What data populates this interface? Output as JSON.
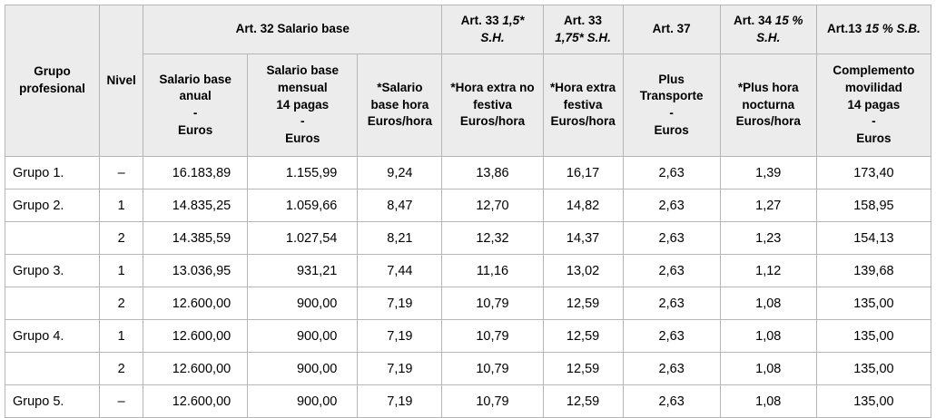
{
  "table": {
    "styles": {
      "header_bg": "#ececec",
      "border_color": "#b6b6b6",
      "text_color": "#000000",
      "page_bg": "#ffffff"
    },
    "header_row1": {
      "grupo": {
        "lines": [
          [
            {
              "t": "Grupo"
            }
          ],
          [
            {
              "t": "profesional"
            }
          ]
        ]
      },
      "nivel": {
        "lines": [
          [
            {
              "t": "Nivel"
            }
          ]
        ]
      },
      "art32": {
        "lines": [
          [
            {
              "t": "Art. 32 Salario base"
            }
          ]
        ]
      },
      "art33_15": {
        "lines": [
          [
            {
              "t": "Art. 33 "
            },
            {
              "t": "1,5*",
              "i": 1
            }
          ],
          [
            {
              "t": "S.H.",
              "i": 1
            }
          ]
        ]
      },
      "art33_175": {
        "lines": [
          [
            {
              "t": "Art. 33"
            }
          ],
          [
            {
              "t": "1,75* S.H.",
              "i": 1
            }
          ]
        ]
      },
      "art37": {
        "lines": [
          [
            {
              "t": "Art. 37"
            }
          ]
        ]
      },
      "art34": {
        "lines": [
          [
            {
              "t": "Art. 34 "
            },
            {
              "t": "15 %",
              "i": 1
            }
          ],
          [
            {
              "t": "S.H.",
              "i": 1
            }
          ]
        ]
      },
      "art13": {
        "lines": [
          [
            {
              "t": "Art.13 "
            },
            {
              "t": "15 % S.B.",
              "i": 1
            }
          ]
        ]
      }
    },
    "header_row2": {
      "anual": {
        "lines": [
          [
            {
              "t": "Salario base"
            }
          ],
          [
            {
              "t": "anual"
            }
          ],
          [
            {
              "t": "-"
            }
          ],
          [
            {
              "t": "Euros"
            }
          ]
        ]
      },
      "mensual": {
        "lines": [
          [
            {
              "t": "Salario base"
            }
          ],
          [
            {
              "t": "mensual"
            }
          ],
          [
            {
              "t": "14 pagas"
            }
          ],
          [
            {
              "t": "-"
            }
          ],
          [
            {
              "t": "Euros"
            }
          ]
        ]
      },
      "hora": {
        "lines": [
          [
            {
              "t": "*Salario"
            }
          ],
          [
            {
              "t": "base hora"
            }
          ],
          [
            {
              "t": "Euros/hora"
            }
          ]
        ]
      },
      "extra_no_festiva": {
        "lines": [
          [
            {
              "t": "*Hora extra no"
            }
          ],
          [
            {
              "t": "festiva"
            }
          ],
          [
            {
              "t": "Euros/hora"
            }
          ]
        ]
      },
      "extra_festiva": {
        "lines": [
          [
            {
              "t": "*Hora extra"
            }
          ],
          [
            {
              "t": "festiva"
            }
          ],
          [
            {
              "t": "Euros/hora"
            }
          ]
        ]
      },
      "transporte": {
        "lines": [
          [
            {
              "t": "Plus"
            }
          ],
          [
            {
              "t": "Transporte"
            }
          ],
          [
            {
              "t": "-"
            }
          ],
          [
            {
              "t": "Euros"
            }
          ]
        ]
      },
      "nocturna": {
        "lines": [
          [
            {
              "t": "*Plus hora"
            }
          ],
          [
            {
              "t": "nocturna"
            }
          ],
          [
            {
              "t": "Euros/hora"
            }
          ]
        ]
      },
      "movilidad": {
        "lines": [
          [
            {
              "t": "Complemento"
            }
          ],
          [
            {
              "t": "movilidad"
            }
          ],
          [
            {
              "t": "14 pagas"
            }
          ],
          [
            {
              "t": "-"
            }
          ],
          [
            {
              "t": "Euros"
            }
          ]
        ]
      }
    },
    "rows": [
      {
        "grupo": "Grupo 1.",
        "nivel": "–",
        "anual": "16.183,89",
        "mensual": "1.155,99",
        "hora": "9,24",
        "extra_no_festiva": "13,86",
        "extra_festiva": "16,17",
        "transporte": "2,63",
        "nocturna": "1,39",
        "movilidad": "173,40"
      },
      {
        "grupo": "Grupo 2.",
        "nivel": "1",
        "anual": "14.835,25",
        "mensual": "1.059,66",
        "hora": "8,47",
        "extra_no_festiva": "12,70",
        "extra_festiva": "14,82",
        "transporte": "2,63",
        "nocturna": "1,27",
        "movilidad": "158,95"
      },
      {
        "grupo": "",
        "nivel": "2",
        "anual": "14.385,59",
        "mensual": "1.027,54",
        "hora": "8,21",
        "extra_no_festiva": "12,32",
        "extra_festiva": "14,37",
        "transporte": "2,63",
        "nocturna": "1,23",
        "movilidad": "154,13"
      },
      {
        "grupo": "Grupo 3.",
        "nivel": "1",
        "anual": "13.036,95",
        "mensual": "931,21",
        "hora": "7,44",
        "extra_no_festiva": "11,16",
        "extra_festiva": "13,02",
        "transporte": "2,63",
        "nocturna": "1,12",
        "movilidad": "139,68"
      },
      {
        "grupo": "",
        "nivel": "2",
        "anual": "12.600,00",
        "mensual": "900,00",
        "hora": "7,19",
        "extra_no_festiva": "10,79",
        "extra_festiva": "12,59",
        "transporte": "2,63",
        "nocturna": "1,08",
        "movilidad": "135,00"
      },
      {
        "grupo": "Grupo 4.",
        "nivel": "1",
        "anual": "12.600,00",
        "mensual": "900,00",
        "hora": "7,19",
        "extra_no_festiva": "10,79",
        "extra_festiva": "12,59",
        "transporte": "2,63",
        "nocturna": "1,08",
        "movilidad": "135,00"
      },
      {
        "grupo": "",
        "nivel": "2",
        "anual": "12.600,00",
        "mensual": "900,00",
        "hora": "7,19",
        "extra_no_festiva": "10,79",
        "extra_festiva": "12,59",
        "transporte": "2,63",
        "nocturna": "1,08",
        "movilidad": "135,00"
      },
      {
        "grupo": "Grupo 5.",
        "nivel": "–",
        "anual": "12.600,00",
        "mensual": "900,00",
        "hora": "7,19",
        "extra_no_festiva": "10,79",
        "extra_festiva": "12,59",
        "transporte": "2,63",
        "nocturna": "1,08",
        "movilidad": "135,00"
      }
    ]
  }
}
